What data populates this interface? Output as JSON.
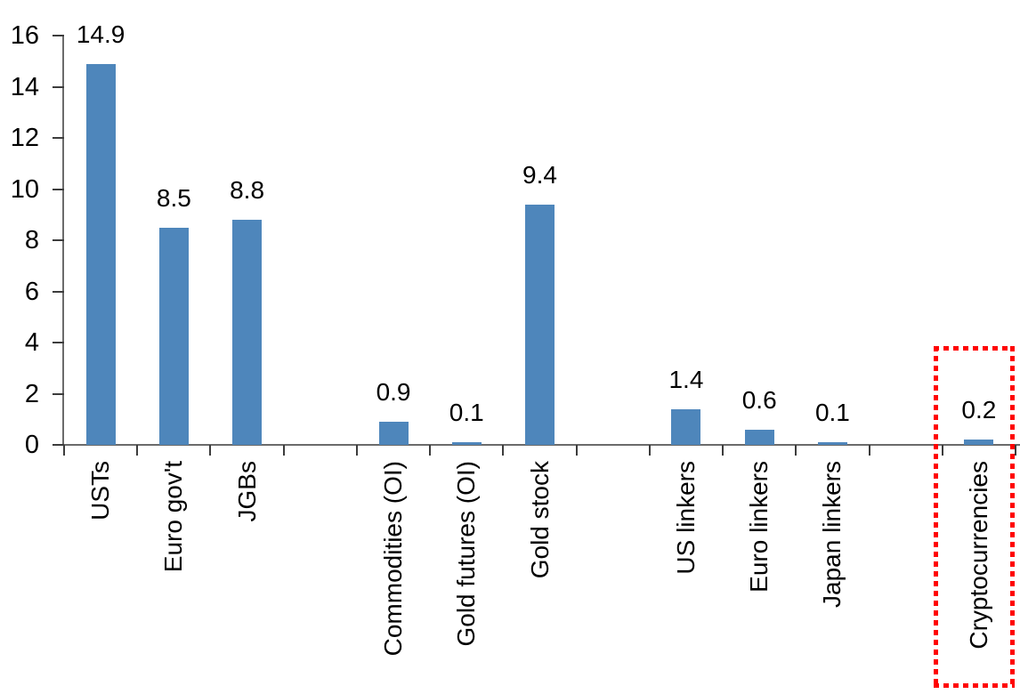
{
  "chart_data": {
    "type": "bar",
    "title": "",
    "xlabel": "",
    "ylabel": "",
    "categories": [
      "USTs",
      "Euro gov't",
      "JGBs",
      "",
      "Commodities (OI)",
      "Gold futures (OI)",
      "Gold stock",
      "",
      "US linkers",
      "Euro linkers",
      "Japan linkers",
      "",
      "Cryptocurrencies"
    ],
    "values": [
      14.9,
      8.5,
      8.8,
      null,
      0.9,
      0.1,
      9.4,
      null,
      1.4,
      0.6,
      0.1,
      null,
      0.2
    ],
    "data_labels": [
      "14.9",
      "8.5",
      "8.8",
      "",
      "0.9",
      "0.1",
      "9.4",
      "",
      "1.4",
      "0.6",
      "0.1",
      "",
      "0.2"
    ],
    "ylim": [
      0,
      16
    ],
    "yticks": [
      0,
      2,
      4,
      6,
      8,
      10,
      12,
      14,
      16
    ],
    "ytick_labels": [
      "0",
      "2",
      "4",
      "6",
      "8",
      "10",
      "12",
      "14",
      "16"
    ],
    "grid": false,
    "legend": "none",
    "bar_color": "#4E86BB",
    "axis_color": "#6B6B6B",
    "tick_color": "#3C3C3C",
    "text_color": "#000000",
    "highlight": {
      "category": "Cryptocurrencies",
      "shape": "dotted-rectangle",
      "color": "#FF0000"
    }
  }
}
